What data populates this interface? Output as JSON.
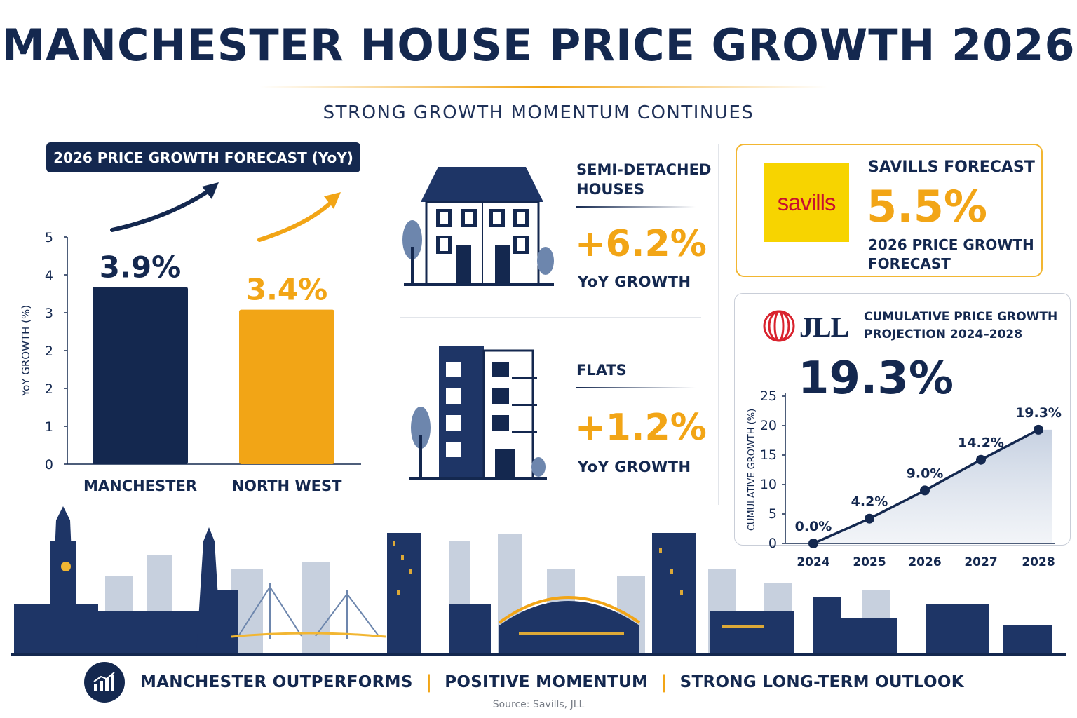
{
  "header": {
    "title": "MANCHESTER HOUSE PRICE GROWTH 2026",
    "subtitle": "STRONG GROWTH MOMENTUM CONTINUES"
  },
  "colors": {
    "navy": "#14284f",
    "gold": "#f2a516",
    "savills_yellow": "#f7d400",
    "savills_red": "#c8102e",
    "jll_red": "#d9232e"
  },
  "chart_data": [
    {
      "type": "bar",
      "title": "2026 PRICE GROWTH FORECAST (YoY)",
      "ylabel": "YoY GROWTH (%)",
      "y_ticks": [
        "0",
        "1",
        "2",
        "2",
        "3",
        "4",
        "5"
      ],
      "ylim": [
        0,
        5
      ],
      "categories": [
        "MANCHESTER",
        "NORTH WEST"
      ],
      "values": [
        3.9,
        3.4
      ],
      "value_labels": [
        "3.9%",
        "3.4%"
      ],
      "colors": [
        "#14284f",
        "#f2a516"
      ]
    },
    {
      "type": "line",
      "title": "CUMULATIVE PRICE GROWTH PROJECTION 2024–2028",
      "ylabel": "CUMULATIVE GROWTH (%)",
      "x": [
        "2024",
        "2025",
        "2026",
        "2027",
        "2028"
      ],
      "values": [
        0.0,
        4.2,
        9.0,
        14.2,
        19.3
      ],
      "value_labels": [
        "0.0%",
        "4.2%",
        "9.0%",
        "14.2%",
        "19.3%"
      ],
      "y_ticks": [
        0,
        5,
        10,
        15,
        20,
        25
      ],
      "ylim": [
        0,
        25
      ]
    }
  ],
  "property_types": [
    {
      "label_lines": [
        "SEMI-DETACHED",
        "HOUSES"
      ],
      "value": "+6.2%",
      "sub": "YoY GROWTH",
      "icon": "semi-detached-house-icon"
    },
    {
      "label_lines": [
        "FLATS"
      ],
      "value": "+1.2%",
      "sub": "YoY GROWTH",
      "icon": "apartment-building-icon"
    }
  ],
  "savills": {
    "logo_text": "savills",
    "heading": "SAVILLS FORECAST",
    "value": "5.5%",
    "desc": "2026 PRICE GROWTH FORECAST"
  },
  "jll": {
    "logo_text": "JLL",
    "heading": "CUMULATIVE PRICE GROWTH PROJECTION 2024–2028",
    "value": "19.3%"
  },
  "footer": {
    "items": [
      "MANCHESTER OUTPERFORMS",
      "POSITIVE MOMENTUM",
      "STRONG LONG-TERM OUTLOOK"
    ],
    "separator": "|",
    "icon": "growth-chart-icon"
  },
  "source": "Source: Savills, JLL"
}
